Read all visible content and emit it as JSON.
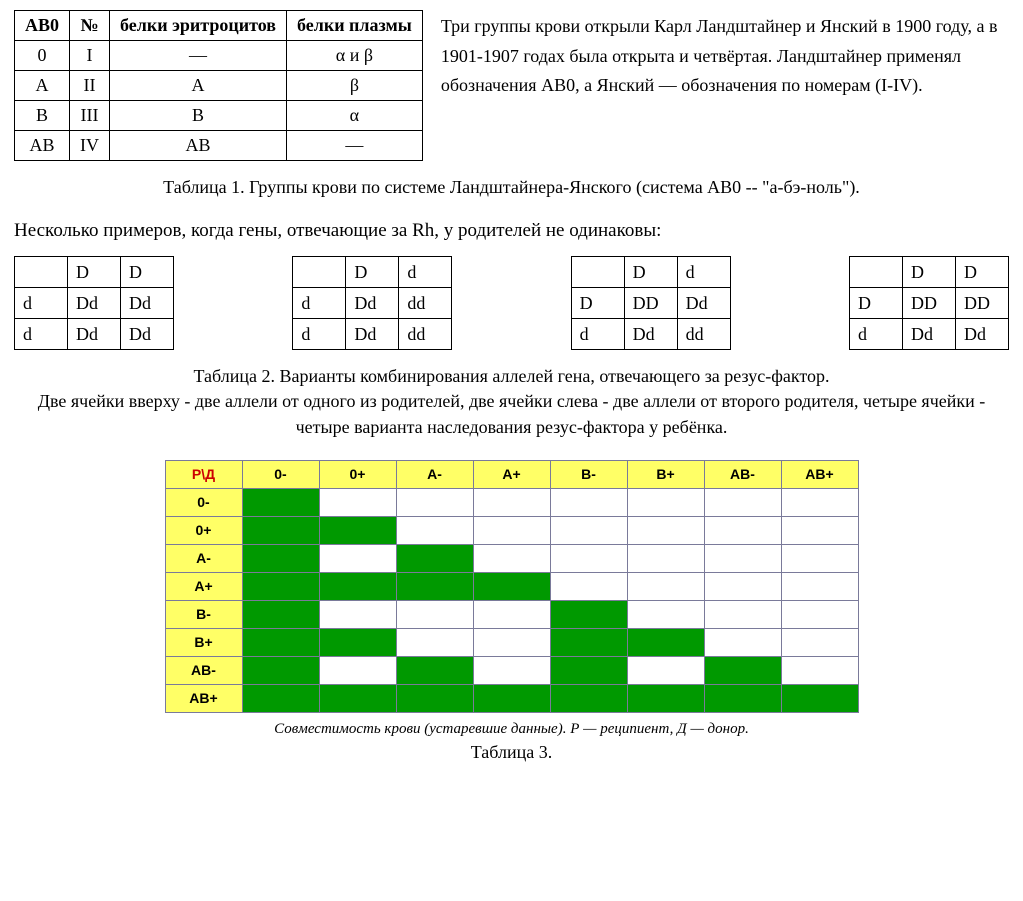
{
  "table1": {
    "headers": [
      "AB0",
      "№",
      "белки эритроцитов",
      "белки плазмы"
    ],
    "rows": [
      [
        "0",
        "I",
        "—",
        "α и β"
      ],
      [
        "A",
        "II",
        "A",
        "β"
      ],
      [
        "B",
        "III",
        "B",
        "α"
      ],
      [
        "AB",
        "IV",
        "AB",
        "—"
      ]
    ],
    "side_text": "Три группы крови открыли Карл Ландштайнер и Янский в 1900 году, а в 1901-1907 годах была открыта и четвёртая. Ландштайнер применял обозначения AB0, а Янский — обозначения по номерам (I-IV).",
    "caption": "Таблица 1. Группы крови по системе Ландштайнера-Янского (система AB0 -- \"а-бэ-ноль\")."
  },
  "punnett_intro": "Несколько примеров, когда гены, отвечающие за Rh, у родителей не одинаковы:",
  "punnett": [
    [
      [
        "",
        "D",
        "D"
      ],
      [
        "d",
        "Dd",
        "Dd"
      ],
      [
        "d",
        "Dd",
        "Dd"
      ]
    ],
    [
      [
        "",
        "D",
        "d"
      ],
      [
        "d",
        "Dd",
        "dd"
      ],
      [
        "d",
        "Dd",
        "dd"
      ]
    ],
    [
      [
        "",
        "D",
        "d"
      ],
      [
        "D",
        "DD",
        "Dd"
      ],
      [
        "d",
        "Dd",
        "dd"
      ]
    ],
    [
      [
        "",
        "D",
        "D"
      ],
      [
        "D",
        "DD",
        "DD"
      ],
      [
        "d",
        "Dd",
        "Dd"
      ]
    ]
  ],
  "table2_caption": "Таблица 2. Варианты комбинирования аллелей гена, отвечающего за резус-фактор.\nДве ячейки вверху - две аллели от одного из родителей, две ячейки слева - две аллели от второго родителя, четыре ячейки - четыре варианта наследования резус-фактора у ребёнка.",
  "compat": {
    "corner": "Р\\Д",
    "cols": [
      "0-",
      "0+",
      "A-",
      "A+",
      "B-",
      "B+",
      "AB-",
      "AB+"
    ],
    "rows": [
      "0-",
      "0+",
      "A-",
      "A+",
      "B-",
      "B+",
      "AB-",
      "AB+"
    ],
    "matrix": [
      [
        1,
        0,
        0,
        0,
        0,
        0,
        0,
        0
      ],
      [
        1,
        1,
        0,
        0,
        0,
        0,
        0,
        0
      ],
      [
        1,
        0,
        1,
        0,
        0,
        0,
        0,
        0
      ],
      [
        1,
        1,
        1,
        1,
        0,
        0,
        0,
        0
      ],
      [
        1,
        0,
        0,
        0,
        1,
        0,
        0,
        0
      ],
      [
        1,
        1,
        0,
        0,
        1,
        1,
        0,
        0
      ],
      [
        1,
        0,
        1,
        0,
        1,
        0,
        1,
        0
      ],
      [
        1,
        1,
        1,
        1,
        1,
        1,
        1,
        1
      ]
    ],
    "colors": {
      "header_bg": "#ffff66",
      "header_fg": "#000000",
      "corner_fg": "#cc0000",
      "on_bg": "#009900",
      "off_bg": "#ffffff",
      "border": "#7a7a9a"
    },
    "italic_caption": "Совместимость крови (устаревшие данные). Р — реципиент,  Д — донор.",
    "label": "Таблица 3."
  }
}
